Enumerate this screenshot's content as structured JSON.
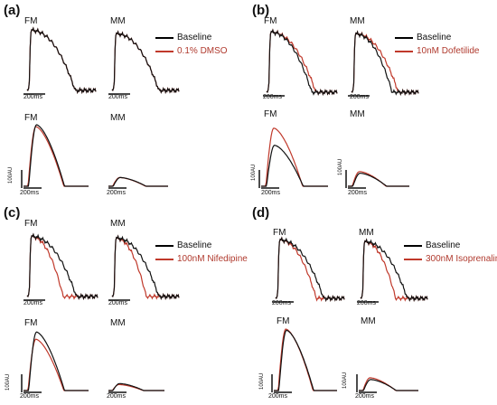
{
  "common": {
    "label_fm": "FM",
    "label_mm": "MM",
    "scalebar_time": "200ms",
    "scalebar_amp": "100AU",
    "baseline_label": "Baseline"
  },
  "colors": {
    "baseline": "#111111",
    "drug": "#c0392b"
  },
  "chart_data": [
    {
      "type": "line",
      "panel": "(a)",
      "drug_label": "0.1% DMSO",
      "series": [
        {
          "name": "Baseline"
        },
        {
          "name": "0.1% DMSO"
        }
      ],
      "ap_fm": {
        "baseline_apd": 1.0,
        "drug_apd": 1.0
      },
      "ap_mm": {
        "baseline_apd": 1.0,
        "drug_apd": 1.0
      },
      "ca_fm": {
        "baseline_amp": 1.0,
        "drug_amp": 0.97
      },
      "ca_mm": {
        "baseline_amp": 0.37,
        "drug_amp": 0.37
      }
    },
    {
      "type": "line",
      "panel": "(b)",
      "drug_label": "10nM Dofetilide",
      "series": [
        {
          "name": "Baseline"
        },
        {
          "name": "10nM Dofetilide"
        }
      ],
      "ap_fm": {
        "baseline_apd": 0.86,
        "drug_apd": 1.0
      },
      "ap_mm": {
        "baseline_apd": 0.78,
        "drug_apd": 1.0
      },
      "ca_fm": {
        "baseline_amp": 0.62,
        "drug_amp": 0.88
      },
      "ca_mm": {
        "baseline_amp": 0.4,
        "drug_amp": 0.45
      }
    },
    {
      "type": "line",
      "panel": "(c)",
      "drug_label": "100nM Nifedipine",
      "series": [
        {
          "name": "Baseline"
        },
        {
          "name": "100nM Nifedipine"
        }
      ],
      "ap_fm": {
        "baseline_apd": 1.0,
        "drug_apd": 0.55
      },
      "ap_mm": {
        "baseline_apd": 1.0,
        "drug_apd": 0.55
      },
      "ca_fm": {
        "baseline_amp": 0.98,
        "drug_amp": 0.86
      },
      "ca_mm": {
        "baseline_amp": 0.35,
        "drug_amp": 0.3
      }
    },
    {
      "type": "line",
      "panel": "(d)",
      "drug_label": "300nM Isoprenaline",
      "series": [
        {
          "name": "Baseline"
        },
        {
          "name": "300nM Isoprenaline"
        }
      ],
      "ap_fm": {
        "baseline_apd": 1.0,
        "drug_apd": 0.74
      },
      "ap_mm": {
        "baseline_apd": 1.0,
        "drug_apd": 0.58
      },
      "ca_fm": {
        "baseline_amp": 0.98,
        "drug_amp": 1.0
      },
      "ca_mm": {
        "baseline_amp": 0.38,
        "drug_amp": 0.44
      }
    }
  ]
}
